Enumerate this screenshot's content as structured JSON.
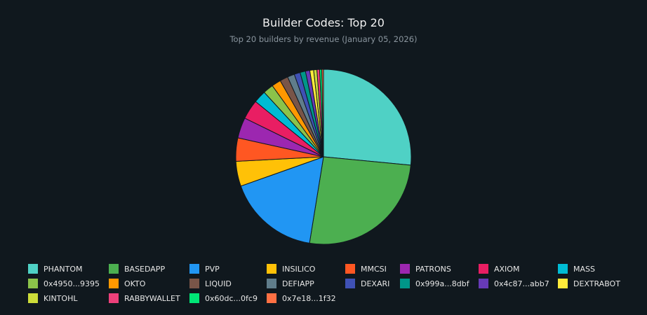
{
  "chart_data": {
    "type": "pie",
    "title": "Builder Codes: Top 20",
    "subtitle": "Top 20 builders by revenue (January 05, 2026)",
    "legend_position": "bottom",
    "labels": [
      "PHANTOM",
      "BASEDAPP",
      "PVP",
      "INSILICO",
      "MMCSI",
      "PATRONS",
      "AXIOM",
      "MASS",
      "0x4950...9395",
      "OKTO",
      "LIQUID",
      "DEFIAPP",
      "DEXARI",
      "0x999a...8dbf",
      "0x4c87...abb7",
      "DEXTRABOT",
      "KINTOHL",
      "RABBYWALLET",
      "0x60dc...0fc9",
      "0x7e18...1f32"
    ],
    "values": [
      26.5,
      26.0,
      17.0,
      4.6,
      4.3,
      3.8,
      3.6,
      2.3,
      1.9,
      1.7,
      1.5,
      1.3,
      1.1,
      1.0,
      0.8,
      0.7,
      0.6,
      0.5,
      0.4,
      0.3
    ],
    "colors": [
      "#4fd1c5",
      "#4caf50",
      "#2196f3",
      "#ffc107",
      "#ff5722",
      "#9c27b0",
      "#e91e63",
      "#00bcd4",
      "#8bc34a",
      "#ff9800",
      "#795548",
      "#607d8b",
      "#3f51b5",
      "#009688",
      "#673ab7",
      "#ffeb3b",
      "#cddc39",
      "#ec407a",
      "#00e676",
      "#ff7043"
    ]
  }
}
